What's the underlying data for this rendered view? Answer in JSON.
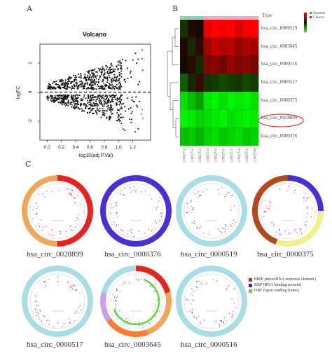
{
  "panels": {
    "a": "A",
    "b": "B",
    "c": "C"
  },
  "chart_data": [
    {
      "type": "scatter",
      "title": "Volcano",
      "xlabel": "-log10(adj.P.Val)",
      "ylabel": "logFC",
      "xlim": [
        -0.1,
        1.45
      ],
      "ylim": [
        -3.3,
        3.3
      ],
      "xticks": [
        "0.0",
        "0.2",
        "0.4",
        "0.6",
        "0.8",
        "1.0",
        "1.2"
      ],
      "yticks": [
        "-2",
        "0",
        "2"
      ],
      "threshold_line_y": [
        -1,
        1
      ],
      "highlight_colors": {
        "up": "#e8231c",
        "down": "#33cc33",
        "neutral": "#111111"
      }
    },
    {
      "type": "heatmap",
      "legend": {
        "title": "Type",
        "entries": [
          {
            "label": "Normal",
            "color": "#00cc66"
          },
          {
            "label": "Cancer",
            "color": "#e61a1a"
          }
        ]
      },
      "row_labels": [
        "hsa_circ_0000519",
        "hsa_circ_0003645",
        "hsa_circ_0000516",
        "hsa_circ_0000517",
        "hsa_circ_0000375",
        "hsa_circ_0028899",
        "hsa_circ_0000376"
      ],
      "highlighted_row": "hsa_circ_0028899",
      "column_labels": [
        "GSM2751",
        "GSM2752",
        "GSM2753",
        "GSM2754",
        "GSM2755",
        "GSM2756",
        "GSM2757",
        "GSM2758",
        "GSM2759",
        "GSM2760"
      ],
      "column_groups": [
        "Normal",
        "Normal",
        "Normal",
        "Cancer",
        "Cancer",
        "Cancer",
        "Cancer",
        "Cancer",
        "Cancer",
        "Cancer"
      ],
      "values": [
        [
          -0.2,
          0.1,
          0.0,
          1.8,
          2.0,
          1.9,
          2.1,
          1.7,
          1.9,
          2.0
        ],
        [
          0.1,
          -0.1,
          0.2,
          1.2,
          1.5,
          1.3,
          1.4,
          1.1,
          1.3,
          1.2
        ],
        [
          0.0,
          0.2,
          -0.1,
          0.9,
          1.0,
          0.8,
          1.1,
          0.9,
          1.0,
          0.8
        ],
        [
          -0.6,
          -0.1,
          0.3,
          -0.2,
          -0.3,
          -0.4,
          -0.3,
          -0.2,
          -0.4,
          -0.3
        ],
        [
          -1.8,
          -1.5,
          -1.2,
          -1.9,
          -2.0,
          -1.8,
          -2.1,
          -1.9,
          -2.0,
          -1.8
        ],
        [
          -2.0,
          -1.9,
          -1.7,
          -1.8,
          -1.9,
          -2.0,
          -1.8,
          -1.9,
          -2.0,
          -1.9
        ],
        [
          -1.5,
          -1.6,
          -1.4,
          -1.7,
          -1.8,
          -1.6,
          -1.7,
          -1.8,
          -1.6,
          -1.7
        ]
      ]
    }
  ],
  "circles": [
    {
      "label": "hsa_circ_0028899",
      "segments": [
        {
          "from": 0,
          "to": 180,
          "color": "#e8231c"
        },
        {
          "from": 180,
          "to": 360,
          "color": "#f0a75a"
        }
      ]
    },
    {
      "label": "hsa_circ_0000376",
      "segments": [
        {
          "from": 0,
          "to": 360,
          "color": "#4a2fd6"
        }
      ]
    },
    {
      "label": "hsa_circ_0000519",
      "segments": [
        {
          "from": 0,
          "to": 360,
          "color": "#a8dde6"
        }
      ]
    },
    {
      "label": "hsa_circ_0000375",
      "segments": [
        {
          "from": 0,
          "to": 90,
          "color": "#4a2fd6"
        },
        {
          "from": 90,
          "to": 200,
          "color": "#f2f08a"
        },
        {
          "from": 200,
          "to": 360,
          "color": "#b5491a"
        }
      ]
    },
    {
      "label": "hsa_circ_0000517",
      "segments": [
        {
          "from": 0,
          "to": 360,
          "color": "#a8dde6"
        }
      ]
    },
    {
      "label": "hsa_circ_0003645",
      "segments": [
        {
          "from": 0,
          "to": 75,
          "color": "#e8231c"
        },
        {
          "from": 75,
          "to": 160,
          "color": "#f0a75a"
        },
        {
          "from": 160,
          "to": 235,
          "color": "#ff7a2a"
        },
        {
          "from": 235,
          "to": 285,
          "color": "#c9a3e6"
        },
        {
          "from": 285,
          "to": 360,
          "color": "#a8dde6"
        }
      ]
    },
    {
      "label": "hsa_circ_0000516",
      "segments": [
        {
          "from": 0,
          "to": 360,
          "color": "#a8dde6"
        }
      ]
    }
  ],
  "legend_c": [
    {
      "label": "MRE (microRNA response element)",
      "color": "#e8231c"
    },
    {
      "label": "RBP (RNA binding protein)",
      "color": "#3322ee"
    },
    {
      "label": "ORF (open reading frame)",
      "color": "#55dd33"
    }
  ]
}
